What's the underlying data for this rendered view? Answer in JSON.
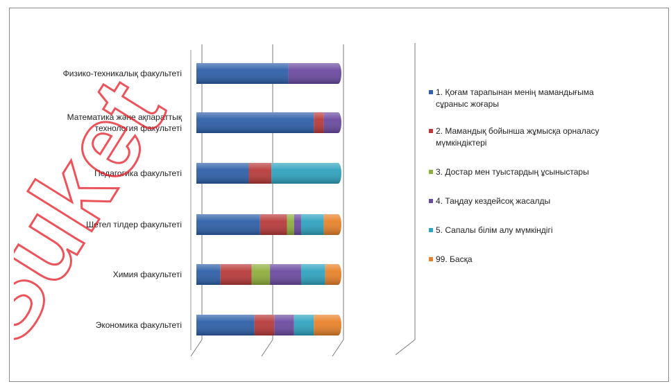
{
  "chart_data": {
    "type": "bar",
    "orientation": "horizontal",
    "stacked": "percent",
    "three_d": true,
    "title": "",
    "xlabel": "",
    "ylabel": "",
    "xlim": [
      0,
      100
    ],
    "grid": true,
    "legend_position": "right",
    "categories": [
      "Физико-техникалық факультеті",
      "Математика және ақпараттық технология факультеті",
      "Педагогика факультеті",
      "Шетел тілдер факультеті",
      "Химия факультеті",
      "Экономика факультеті"
    ],
    "category_lines": [
      [
        "Физико-техникалық факультеті"
      ],
      [
        "Математика және ақпараттық",
        "технология факультеті"
      ],
      [
        "Педагогика факультеті"
      ],
      [
        "Шетел тілдер факультеті"
      ],
      [
        "Химия факультеті"
      ],
      [
        "Экономика факультеті"
      ]
    ],
    "series": [
      {
        "name": "1. Қоғам тарапынан менің мамандығыма сұраныс жоғары",
        "legend_lines": [
          "1. Қоғам тарапынан менің мамандығыма",
          "сұраныс жоғары"
        ],
        "color": "#2e5fa8",
        "values": [
          65,
          83,
          37,
          45,
          17,
          41
        ]
      },
      {
        "name": "2. Мамандық бойынша жұмысқа орналасу мүмкіндіктері",
        "legend_lines": [
          "2. Мамандық бойынша жұмысқа орналасу",
          "мүмкіндіктері"
        ],
        "color": "#b83a3a",
        "values": [
          0,
          7,
          16,
          19,
          22,
          14
        ]
      },
      {
        "name": "3. Достар мен туыстардың ұсыныстары",
        "legend_lines": [
          "3. Достар мен туыстардың ұсыныстары"
        ],
        "color": "#8fae3c",
        "values": [
          0,
          0,
          0,
          5,
          13,
          0
        ]
      },
      {
        "name": "4. Таңдау кездейсоқ жасалды",
        "legend_lines": [
          "4. Таңдау кездейсоқ жасалды"
        ],
        "color": "#6b4aa0",
        "values": [
          35,
          10,
          0,
          5,
          22,
          14
        ]
      },
      {
        "name": "5. Сапалы білім алу мүмкіндігі",
        "legend_lines": [
          "5. Сапалы білім алу мүмкіндігі"
        ],
        "color": "#2fa3bf",
        "values": [
          0,
          0,
          47,
          16,
          17,
          14
        ]
      },
      {
        "name": "99. Басқа",
        "legend_lines": [
          "99. Басқа"
        ],
        "color": "#e8822a",
        "values": [
          0,
          0,
          0,
          10,
          9,
          17
        ]
      }
    ]
  }
}
